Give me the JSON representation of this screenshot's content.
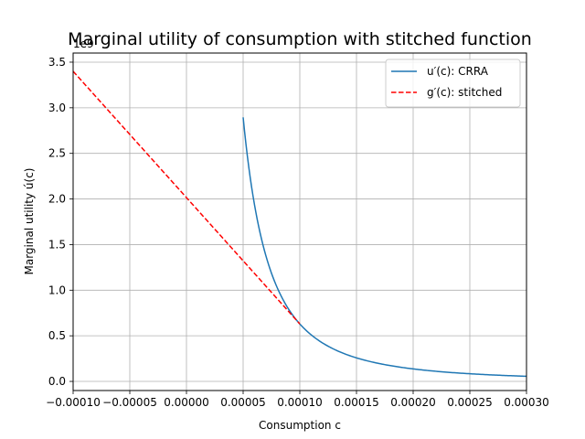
{
  "chart_data": {
    "type": "line",
    "title": "Marginal utility of consumption with stitched function",
    "xlabel": "Consumption c",
    "ylabel": "Marginal utility ú(c)",
    "y_offset_label": "1e9",
    "xlim": [
      -0.0001,
      0.0003
    ],
    "ylim": [
      -0.1,
      3.6
    ],
    "x_ticks": [
      -0.0001,
      -5e-05,
      0.0,
      5e-05,
      0.0001,
      0.00015,
      0.0002,
      0.00025,
      0.0003
    ],
    "x_tick_labels": [
      "−0.00010",
      "−0.00005",
      "0.00000",
      "0.00005",
      "0.00010",
      "0.00015",
      "0.00020",
      "0.00025",
      "0.00030"
    ],
    "y_ticks": [
      0.0,
      0.5,
      1.0,
      1.5,
      2.0,
      2.5,
      3.0,
      3.5
    ],
    "y_tick_labels": [
      "0.0",
      "0.5",
      "1.0",
      "1.5",
      "2.0",
      "2.5",
      "3.0",
      "3.5"
    ],
    "grid": true,
    "legend_position": "top-right",
    "series": [
      {
        "name": "u′(c): CRRA",
        "color": "#1f77b4",
        "style": "solid",
        "function": "crra",
        "exponent": 2.2,
        "x_start": 5e-05,
        "x_end": 0.0003,
        "y_at_0.00010": 0.63
      },
      {
        "name": "g′(c): stitched",
        "color": "#ff0000",
        "style": "dashed",
        "x": [
          -0.0001,
          0.0001
        ],
        "y": [
          3.4,
          0.63
        ]
      }
    ]
  }
}
